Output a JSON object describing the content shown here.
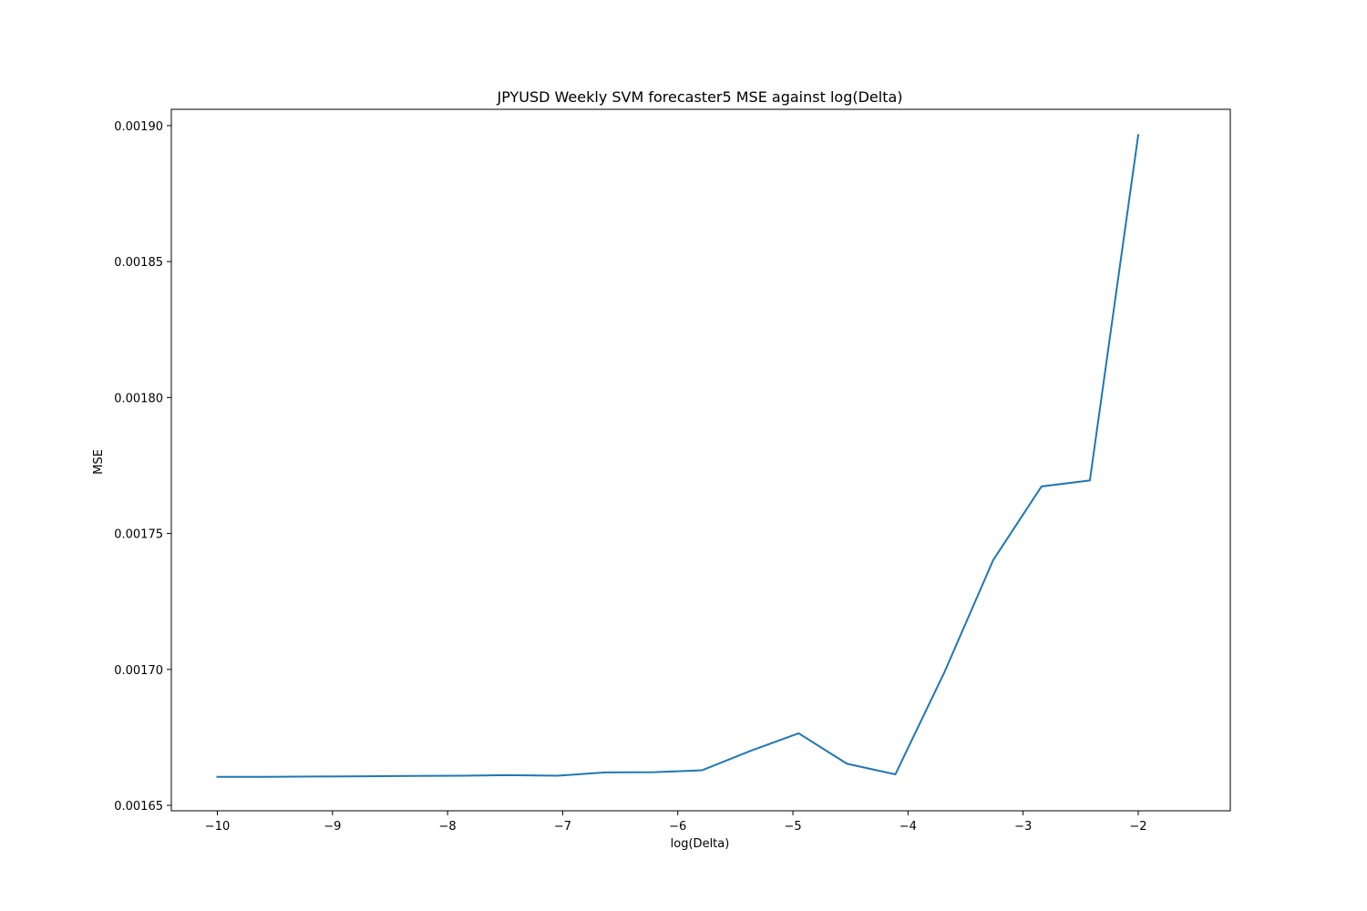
{
  "chart_data": {
    "type": "line",
    "title": "JPYUSD Weekly SVM forecaster5 MSE against log(Delta)",
    "xlabel": "log(Delta)",
    "ylabel": "MSE",
    "xlim": [
      -10.4,
      -1.2
    ],
    "ylim": [
      0.001648,
      0.001906
    ],
    "xticks": [
      -10,
      -9,
      -8,
      -7,
      -6,
      -5,
      -4,
      -3,
      -2
    ],
    "xtick_labels": [
      "−10",
      "−9",
      "−8",
      "−7",
      "−6",
      "−5",
      "−4",
      "−3",
      "−2"
    ],
    "yticks": [
      0.00165,
      0.0017,
      0.00175,
      0.0018,
      0.00185,
      0.0019
    ],
    "ytick_labels": [
      "0.00165",
      "0.00170",
      "0.00175",
      "0.00180",
      "0.00185",
      "0.00190"
    ],
    "grid": false,
    "series": [
      {
        "color": "#1f77b4",
        "x": [
          -10.0,
          -9.58,
          -9.16,
          -8.74,
          -8.32,
          -7.89,
          -7.47,
          -7.05,
          -6.63,
          -6.21,
          -5.79,
          -5.37,
          -4.95,
          -4.53,
          -4.11,
          -3.68,
          -3.26,
          -2.84,
          -2.42,
          -2.0
        ],
        "y": [
          0.0016605,
          0.0016605,
          0.0016606,
          0.0016607,
          0.0016608,
          0.0016609,
          0.0016611,
          0.0016609,
          0.0016621,
          0.0016622,
          0.0016629,
          0.00167,
          0.0016765,
          0.0016653,
          0.0016614,
          0.0016993,
          0.0017402,
          0.0017673,
          0.0017695,
          0.0018965
        ]
      }
    ]
  }
}
